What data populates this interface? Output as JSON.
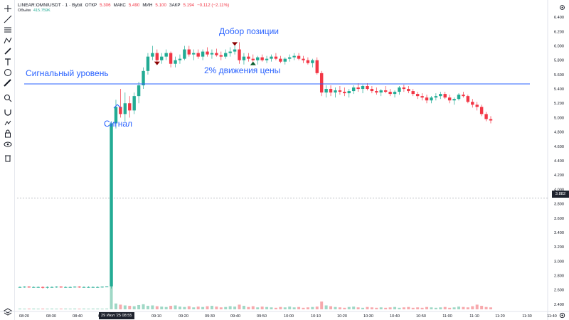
{
  "header": {
    "symbol": "LINEAR:OMNIUSDT · 1 · Bybit",
    "open_label": "ОТКР",
    "open_value": "5.306",
    "high_label": "МАКС",
    "high_value": "5.490",
    "low_label": "МИН",
    "low_value": "5.100",
    "close_label": "ЗАКР",
    "close_value": "5.194",
    "change_value": "−0.112 (−2.11%)"
  },
  "volume": {
    "label": "Объём",
    "value": "415.759K"
  },
  "annotations": {
    "signal_level": "Сигнальный уровень",
    "signal": "Сигнал",
    "add_position": "Добор позиции",
    "move_2pct": "2% движения цены"
  },
  "price_badge": "3.882",
  "date_badge": "29 Июл '25   08:55",
  "colors": {
    "up": "#22ab94",
    "down": "#f23645",
    "annotation": "#2962ff",
    "up_volume": "#9fd8c6",
    "down_volume": "#f7a9ad"
  },
  "toolbar": {
    "icons": [
      "crosshair-icon",
      "trend-line-icon",
      "fib-icon",
      "pattern-icon",
      "brush-icon",
      "text-icon",
      "emoji-icon",
      "ruler-icon",
      "zoom-icon",
      "magnet-icon",
      "lock-drawing-icon",
      "lock-icon",
      "eye-icon",
      "trash-icon",
      "layers-icon"
    ]
  },
  "chart_data": {
    "type": "candlestick",
    "y_ticks": [
      "6.400",
      "6.200",
      "6.000",
      "5.800",
      "5.600",
      "5.400",
      "5.200",
      "5.000",
      "4.800",
      "4.600",
      "4.400",
      "4.200",
      "4.000",
      "3.800",
      "3.600",
      "3.400",
      "3.200",
      "3.000",
      "2.800",
      "2.600",
      "2.400"
    ],
    "x_ticks": [
      "08:20",
      "08:30",
      "08:40",
      "08:50",
      "09:10",
      "09:20",
      "09:30",
      "09:40",
      "09:50",
      "10:00",
      "10:10",
      "10:20",
      "10:30",
      "10:40",
      "10:50",
      "11:00",
      "11:10",
      "11:20",
      "11:30",
      "11:40"
    ],
    "ylim": [
      2.3,
      6.5
    ],
    "signal_level": 5.47,
    "crosshair_price": 3.882,
    "markers": [
      {
        "type": "sell",
        "time_index": 30,
        "price": 5.78
      },
      {
        "type": "sell",
        "time_index": 47,
        "price": 6.05
      },
      {
        "type": "buy",
        "time_index": 51,
        "price": 5.78
      }
    ],
    "ohlc": [
      [
        2.64,
        2.65,
        2.63,
        2.64
      ],
      [
        2.64,
        2.65,
        2.63,
        2.645
      ],
      [
        2.645,
        2.65,
        2.63,
        2.64
      ],
      [
        2.64,
        2.65,
        2.63,
        2.64
      ],
      [
        2.64,
        2.65,
        2.63,
        2.64
      ],
      [
        2.64,
        2.65,
        2.62,
        2.635
      ],
      [
        2.635,
        2.65,
        2.62,
        2.64
      ],
      [
        2.64,
        2.65,
        2.63,
        2.64
      ],
      [
        2.64,
        2.65,
        2.63,
        2.645
      ],
      [
        2.645,
        2.65,
        2.63,
        2.64
      ],
      [
        2.64,
        2.65,
        2.63,
        2.64
      ],
      [
        2.64,
        2.65,
        2.63,
        2.64
      ],
      [
        2.64,
        2.65,
        2.63,
        2.645
      ],
      [
        2.645,
        2.65,
        2.63,
        2.64
      ],
      [
        2.64,
        2.65,
        2.63,
        2.64
      ],
      [
        2.64,
        2.65,
        2.63,
        2.64
      ],
      [
        2.64,
        2.65,
        2.63,
        2.64
      ],
      [
        2.64,
        2.65,
        2.63,
        2.64
      ],
      [
        2.64,
        2.65,
        2.63,
        2.645
      ],
      [
        2.645,
        2.65,
        2.64,
        2.65
      ],
      [
        2.65,
        4.95,
        2.62,
        4.92
      ],
      [
        4.92,
        5.25,
        4.85,
        5.15
      ],
      [
        5.15,
        5.4,
        5.0,
        5.05
      ],
      [
        5.05,
        5.35,
        4.95,
        5.2
      ],
      [
        5.2,
        5.3,
        5.0,
        5.1
      ],
      [
        5.1,
        5.35,
        5.05,
        5.3
      ],
      [
        5.3,
        5.5,
        5.2,
        5.45
      ],
      [
        5.45,
        5.7,
        5.4,
        5.65
      ],
      [
        5.65,
        5.9,
        5.6,
        5.85
      ],
      [
        5.85,
        6.0,
        5.8,
        5.9
      ],
      [
        5.9,
        5.95,
        5.75,
        5.8
      ],
      [
        5.8,
        5.9,
        5.75,
        5.85
      ],
      [
        5.85,
        5.95,
        5.8,
        5.9
      ],
      [
        5.9,
        5.92,
        5.7,
        5.75
      ],
      [
        5.75,
        5.85,
        5.7,
        5.8
      ],
      [
        5.8,
        5.88,
        5.75,
        5.82
      ],
      [
        5.82,
        6.0,
        5.8,
        5.95
      ],
      [
        5.95,
        6.0,
        5.85,
        5.88
      ],
      [
        5.88,
        5.95,
        5.8,
        5.9
      ],
      [
        5.9,
        5.95,
        5.82,
        5.85
      ],
      [
        5.85,
        5.95,
        5.8,
        5.92
      ],
      [
        5.92,
        5.98,
        5.85,
        5.88
      ],
      [
        5.88,
        5.95,
        5.82,
        5.9
      ],
      [
        5.9,
        5.96,
        5.85,
        5.87
      ],
      [
        5.87,
        5.92,
        5.8,
        5.85
      ],
      [
        5.85,
        5.95,
        5.82,
        5.9
      ],
      [
        5.9,
        5.98,
        5.85,
        5.92
      ],
      [
        5.92,
        6.0,
        5.88,
        5.95
      ],
      [
        5.95,
        6.05,
        5.75,
        5.8
      ],
      [
        5.8,
        5.9,
        5.74,
        5.85
      ],
      [
        5.85,
        5.9,
        5.78,
        5.82
      ],
      [
        5.82,
        5.88,
        5.75,
        5.8
      ],
      [
        5.8,
        5.86,
        5.74,
        5.84
      ],
      [
        5.84,
        5.88,
        5.78,
        5.8
      ],
      [
        5.8,
        5.86,
        5.76,
        5.82
      ],
      [
        5.82,
        5.88,
        5.78,
        5.85
      ],
      [
        5.85,
        5.9,
        5.8,
        5.82
      ],
      [
        5.82,
        5.86,
        5.76,
        5.78
      ],
      [
        5.78,
        5.84,
        5.74,
        5.82
      ],
      [
        5.82,
        5.88,
        5.78,
        5.84
      ],
      [
        5.84,
        5.9,
        5.8,
        5.86
      ],
      [
        5.86,
        5.9,
        5.8,
        5.82
      ],
      [
        5.82,
        5.86,
        5.76,
        5.8
      ],
      [
        5.8,
        5.84,
        5.74,
        5.76
      ],
      [
        5.76,
        5.82,
        5.7,
        5.8
      ],
      [
        5.8,
        5.84,
        5.6,
        5.62
      ],
      [
        5.62,
        5.65,
        5.3,
        5.35
      ],
      [
        5.35,
        5.45,
        5.28,
        5.4
      ],
      [
        5.4,
        5.45,
        5.3,
        5.35
      ],
      [
        5.35,
        5.42,
        5.28,
        5.38
      ],
      [
        5.38,
        5.44,
        5.32,
        5.36
      ],
      [
        5.36,
        5.42,
        5.3,
        5.34
      ],
      [
        5.34,
        5.4,
        5.28,
        5.37
      ],
      [
        5.37,
        5.45,
        5.33,
        5.42
      ],
      [
        5.42,
        5.48,
        5.36,
        5.4
      ],
      [
        5.4,
        5.46,
        5.34,
        5.44
      ],
      [
        5.44,
        5.48,
        5.38,
        5.4
      ],
      [
        5.4,
        5.44,
        5.34,
        5.37
      ],
      [
        5.37,
        5.42,
        5.32,
        5.35
      ],
      [
        5.35,
        5.4,
        5.3,
        5.38
      ],
      [
        5.38,
        5.44,
        5.34,
        5.36
      ],
      [
        5.36,
        5.4,
        5.3,
        5.33
      ],
      [
        5.33,
        5.38,
        5.28,
        5.36
      ],
      [
        5.36,
        5.44,
        5.32,
        5.42
      ],
      [
        5.42,
        5.46,
        5.36,
        5.4
      ],
      [
        5.4,
        5.44,
        5.34,
        5.37
      ],
      [
        5.37,
        5.4,
        5.3,
        5.33
      ],
      [
        5.33,
        5.36,
        5.26,
        5.3
      ],
      [
        5.3,
        5.34,
        5.24,
        5.28
      ],
      [
        5.28,
        5.32,
        5.2,
        5.24
      ],
      [
        5.24,
        5.3,
        5.2,
        5.28
      ],
      [
        5.28,
        5.34,
        5.24,
        5.3
      ],
      [
        5.3,
        5.36,
        5.26,
        5.33
      ],
      [
        5.33,
        5.36,
        5.26,
        5.28
      ],
      [
        5.28,
        5.32,
        5.2,
        5.24
      ],
      [
        5.24,
        5.28,
        5.18,
        5.26
      ],
      [
        5.26,
        5.34,
        5.24,
        5.32
      ],
      [
        5.32,
        5.36,
        5.28,
        5.3
      ],
      [
        5.3,
        5.32,
        5.2,
        5.22
      ],
      [
        5.22,
        5.26,
        5.14,
        5.18
      ],
      [
        5.18,
        5.22,
        5.1,
        5.15
      ],
      [
        5.15,
        5.18,
        5.02,
        5.05
      ],
      [
        5.05,
        5.08,
        4.95,
        4.98
      ],
      [
        4.98,
        5.02,
        4.92,
        4.96
      ]
    ],
    "volume": [
      0.02,
      0.015,
      0.02,
      0.02,
      0.015,
      0.02,
      0.018,
      0.02,
      0.015,
      0.02,
      0.02,
      0.015,
      0.02,
      0.018,
      0.02,
      0.015,
      0.02,
      0.02,
      0.015,
      0.02,
      1.0,
      0.15,
      0.12,
      0.1,
      0.09,
      0.08,
      0.11,
      0.13,
      0.09,
      0.1,
      0.08,
      0.07,
      0.06,
      0.09,
      0.1,
      0.07,
      0.06,
      0.08,
      0.05,
      0.07,
      0.06,
      0.08,
      0.09,
      0.07,
      0.05,
      0.06,
      0.08,
      0.07,
      0.12,
      0.09,
      0.06,
      0.08,
      0.05,
      0.07,
      0.06,
      0.05,
      0.04,
      0.06,
      0.05,
      0.07,
      0.05,
      0.06,
      0.04,
      0.05,
      0.06,
      0.07,
      0.2,
      0.1,
      0.08,
      0.06,
      0.05,
      0.04,
      0.06,
      0.07,
      0.05,
      0.04,
      0.06,
      0.05,
      0.04,
      0.05,
      0.04,
      0.05,
      0.06,
      0.04,
      0.05,
      0.06,
      0.04,
      0.05,
      0.04,
      0.06,
      0.05,
      0.04,
      0.05,
      0.06,
      0.04,
      0.05,
      0.07,
      0.06,
      0.05,
      0.08,
      0.12,
      0.09,
      0.06,
      0.05
    ]
  }
}
